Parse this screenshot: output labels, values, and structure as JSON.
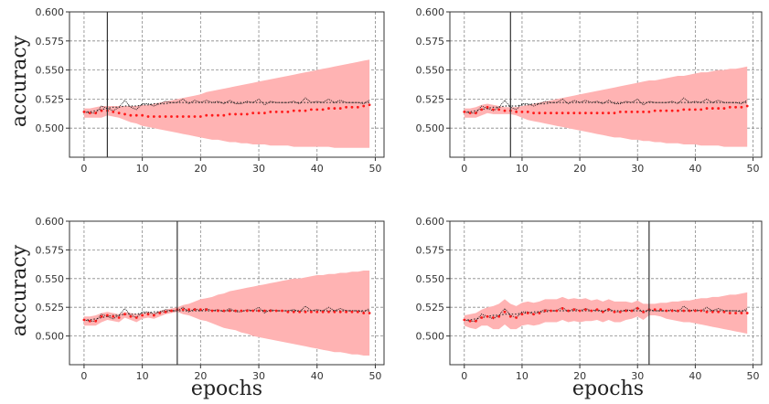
{
  "chart_data": [
    {
      "type": "line",
      "ylabel": "accuracy",
      "xlabel": "",
      "xlim": [
        -2.5,
        51.5
      ],
      "ylim": [
        0.475,
        0.6
      ],
      "yticks": [
        0.5,
        0.525,
        0.55,
        0.575,
        0.6
      ],
      "ytick_labels": [
        "0.500",
        "0.525",
        "0.550",
        "0.575",
        "0.600"
      ],
      "xticks": [
        0,
        10,
        20,
        30,
        40,
        50
      ],
      "xtick_labels": [
        "0",
        "10",
        "20",
        "30",
        "40",
        "50"
      ],
      "grid": true,
      "vline": 4,
      "actual": [
        0.514,
        0.513,
        0.513,
        0.519,
        0.517,
        0.515,
        0.518,
        0.524,
        0.518,
        0.516,
        0.521,
        0.521,
        0.519,
        0.521,
        0.523,
        0.522,
        0.522,
        0.525,
        0.521,
        0.524,
        0.522,
        0.524,
        0.522,
        0.523,
        0.521,
        0.524,
        0.521,
        0.521,
        0.523,
        0.522,
        0.525,
        0.52,
        0.523,
        0.522,
        0.522,
        0.522,
        0.523,
        0.521,
        0.526,
        0.522,
        0.523,
        0.522,
        0.525,
        0.522,
        0.524,
        0.522,
        0.522,
        0.522,
        0.521,
        0.524
      ],
      "smoothed": [
        0.514,
        0.514,
        0.515,
        0.516,
        0.517,
        0.518,
        0.518,
        0.519,
        0.519,
        0.519,
        0.52,
        0.52,
        0.521,
        0.521,
        0.521,
        0.522,
        0.522,
        0.522,
        0.522,
        0.522,
        0.522,
        0.522,
        0.522,
        0.522,
        0.522,
        0.522,
        0.522,
        0.522,
        0.522,
        0.522,
        0.522,
        0.522,
        0.522,
        0.522,
        0.522,
        0.522,
        0.522,
        0.522,
        0.522,
        0.522,
        0.522,
        0.522,
        0.522,
        0.522,
        0.522,
        0.522,
        0.522,
        0.522,
        0.522,
        0.522
      ],
      "forecast": [
        0.514,
        0.513,
        0.513,
        0.515,
        0.515,
        0.514,
        0.513,
        0.512,
        0.511,
        0.511,
        0.511,
        0.51,
        0.51,
        0.51,
        0.51,
        0.51,
        0.51,
        0.51,
        0.51,
        0.51,
        0.51,
        0.511,
        0.511,
        0.511,
        0.511,
        0.512,
        0.512,
        0.512,
        0.512,
        0.513,
        0.513,
        0.513,
        0.514,
        0.514,
        0.514,
        0.514,
        0.515,
        0.515,
        0.515,
        0.516,
        0.516,
        0.516,
        0.517,
        0.517,
        0.517,
        0.518,
        0.518,
        0.518,
        0.519,
        0.52
      ],
      "band_upper": [
        0.517,
        0.517,
        0.518,
        0.519,
        0.519,
        0.519,
        0.519,
        0.519,
        0.519,
        0.519,
        0.52,
        0.52,
        0.521,
        0.522,
        0.523,
        0.524,
        0.525,
        0.526,
        0.527,
        0.528,
        0.529,
        0.531,
        0.532,
        0.533,
        0.534,
        0.535,
        0.536,
        0.537,
        0.538,
        0.539,
        0.54,
        0.541,
        0.542,
        0.543,
        0.544,
        0.545,
        0.546,
        0.547,
        0.548,
        0.549,
        0.55,
        0.551,
        0.552,
        0.553,
        0.554,
        0.555,
        0.556,
        0.557,
        0.558,
        0.559
      ],
      "band_lower": [
        0.509,
        0.509,
        0.509,
        0.509,
        0.511,
        0.51,
        0.509,
        0.507,
        0.505,
        0.504,
        0.502,
        0.501,
        0.5,
        0.499,
        0.498,
        0.497,
        0.496,
        0.495,
        0.494,
        0.493,
        0.492,
        0.491,
        0.49,
        0.49,
        0.489,
        0.488,
        0.488,
        0.487,
        0.487,
        0.486,
        0.486,
        0.486,
        0.485,
        0.485,
        0.485,
        0.485,
        0.484,
        0.484,
        0.484,
        0.484,
        0.484,
        0.484,
        0.484,
        0.483,
        0.483,
        0.483,
        0.483,
        0.483,
        0.483,
        0.483
      ]
    },
    {
      "type": "line",
      "ylabel": "",
      "xlabel": "",
      "xlim": [
        -2.5,
        51.5
      ],
      "ylim": [
        0.475,
        0.6
      ],
      "yticks": [
        0.5,
        0.525,
        0.55,
        0.575,
        0.6
      ],
      "ytick_labels": [
        "0.500",
        "0.525",
        "0.550",
        "0.575",
        "0.600"
      ],
      "xticks": [
        0,
        10,
        20,
        30,
        40,
        50
      ],
      "xtick_labels": [
        "0",
        "10",
        "20",
        "30",
        "40",
        "50"
      ],
      "grid": true,
      "vline": 8,
      "actual": [
        0.514,
        0.513,
        0.513,
        0.519,
        0.517,
        0.515,
        0.518,
        0.524,
        0.518,
        0.516,
        0.521,
        0.521,
        0.519,
        0.521,
        0.523,
        0.522,
        0.522,
        0.525,
        0.521,
        0.524,
        0.522,
        0.524,
        0.522,
        0.523,
        0.521,
        0.524,
        0.521,
        0.521,
        0.523,
        0.522,
        0.525,
        0.52,
        0.523,
        0.522,
        0.522,
        0.522,
        0.523,
        0.521,
        0.526,
        0.522,
        0.523,
        0.522,
        0.525,
        0.522,
        0.524,
        0.522,
        0.522,
        0.522,
        0.521,
        0.524
      ],
      "smoothed": [
        0.514,
        0.514,
        0.515,
        0.516,
        0.517,
        0.518,
        0.518,
        0.519,
        0.519,
        0.519,
        0.52,
        0.52,
        0.521,
        0.521,
        0.521,
        0.522,
        0.522,
        0.522,
        0.522,
        0.522,
        0.522,
        0.522,
        0.522,
        0.522,
        0.522,
        0.522,
        0.522,
        0.522,
        0.522,
        0.522,
        0.522,
        0.522,
        0.522,
        0.522,
        0.522,
        0.522,
        0.522,
        0.522,
        0.522,
        0.522,
        0.522,
        0.522,
        0.522,
        0.522,
        0.522,
        0.522,
        0.522,
        0.522,
        0.522,
        0.522
      ],
      "forecast": [
        0.514,
        0.513,
        0.513,
        0.516,
        0.518,
        0.516,
        0.516,
        0.515,
        0.515,
        0.514,
        0.514,
        0.514,
        0.513,
        0.513,
        0.513,
        0.513,
        0.513,
        0.513,
        0.513,
        0.513,
        0.513,
        0.513,
        0.513,
        0.513,
        0.513,
        0.513,
        0.513,
        0.514,
        0.514,
        0.514,
        0.514,
        0.514,
        0.514,
        0.515,
        0.515,
        0.515,
        0.515,
        0.515,
        0.516,
        0.516,
        0.516,
        0.516,
        0.517,
        0.517,
        0.517,
        0.517,
        0.518,
        0.518,
        0.518,
        0.519
      ],
      "band_upper": [
        0.517,
        0.517,
        0.518,
        0.52,
        0.521,
        0.52,
        0.519,
        0.518,
        0.518,
        0.518,
        0.519,
        0.52,
        0.521,
        0.522,
        0.523,
        0.524,
        0.525,
        0.526,
        0.527,
        0.528,
        0.529,
        0.53,
        0.531,
        0.532,
        0.533,
        0.534,
        0.535,
        0.536,
        0.537,
        0.538,
        0.539,
        0.54,
        0.541,
        0.541,
        0.542,
        0.543,
        0.544,
        0.545,
        0.545,
        0.546,
        0.547,
        0.548,
        0.548,
        0.549,
        0.55,
        0.55,
        0.551,
        0.551,
        0.552,
        0.553
      ],
      "band_lower": [
        0.509,
        0.509,
        0.509,
        0.511,
        0.513,
        0.512,
        0.512,
        0.512,
        0.512,
        0.511,
        0.509,
        0.507,
        0.506,
        0.505,
        0.504,
        0.503,
        0.502,
        0.501,
        0.5,
        0.499,
        0.498,
        0.497,
        0.496,
        0.495,
        0.494,
        0.493,
        0.492,
        0.492,
        0.491,
        0.49,
        0.49,
        0.489,
        0.489,
        0.488,
        0.488,
        0.487,
        0.487,
        0.487,
        0.486,
        0.486,
        0.486,
        0.485,
        0.485,
        0.485,
        0.485,
        0.484,
        0.484,
        0.484,
        0.484,
        0.484
      ]
    },
    {
      "type": "line",
      "ylabel": "accuracy",
      "xlabel": "epochs",
      "xlim": [
        -2.5,
        51.5
      ],
      "ylim": [
        0.475,
        0.6
      ],
      "yticks": [
        0.5,
        0.525,
        0.55,
        0.575,
        0.6
      ],
      "ytick_labels": [
        "0.500",
        "0.525",
        "0.550",
        "0.575",
        "0.600"
      ],
      "xticks": [
        0,
        10,
        20,
        30,
        40,
        50
      ],
      "xtick_labels": [
        "0",
        "10",
        "20",
        "30",
        "40",
        "50"
      ],
      "grid": true,
      "vline": 16,
      "actual": [
        0.514,
        0.513,
        0.513,
        0.519,
        0.517,
        0.515,
        0.518,
        0.524,
        0.518,
        0.516,
        0.521,
        0.521,
        0.519,
        0.521,
        0.523,
        0.522,
        0.522,
        0.525,
        0.521,
        0.524,
        0.522,
        0.524,
        0.522,
        0.523,
        0.521,
        0.524,
        0.521,
        0.521,
        0.523,
        0.522,
        0.525,
        0.52,
        0.523,
        0.522,
        0.522,
        0.522,
        0.523,
        0.521,
        0.526,
        0.522,
        0.523,
        0.522,
        0.525,
        0.522,
        0.524,
        0.522,
        0.522,
        0.522,
        0.521,
        0.524
      ],
      "smoothed": [
        0.514,
        0.514,
        0.515,
        0.516,
        0.517,
        0.518,
        0.518,
        0.519,
        0.519,
        0.519,
        0.52,
        0.52,
        0.521,
        0.521,
        0.521,
        0.522,
        0.522,
        0.522,
        0.522,
        0.522,
        0.522,
        0.522,
        0.522,
        0.522,
        0.522,
        0.522,
        0.522,
        0.522,
        0.522,
        0.522,
        0.522,
        0.522,
        0.522,
        0.522,
        0.522,
        0.522,
        0.522,
        0.522,
        0.522,
        0.522,
        0.522,
        0.522,
        0.522,
        0.522,
        0.522,
        0.522,
        0.522,
        0.522,
        0.522,
        0.522
      ],
      "forecast": [
        0.514,
        0.513,
        0.513,
        0.517,
        0.518,
        0.517,
        0.516,
        0.519,
        0.517,
        0.516,
        0.518,
        0.519,
        0.518,
        0.52,
        0.521,
        0.522,
        0.523,
        0.523,
        0.523,
        0.523,
        0.523,
        0.523,
        0.522,
        0.522,
        0.522,
        0.522,
        0.522,
        0.522,
        0.522,
        0.522,
        0.522,
        0.522,
        0.522,
        0.522,
        0.522,
        0.521,
        0.521,
        0.521,
        0.521,
        0.521,
        0.521,
        0.521,
        0.521,
        0.521,
        0.521,
        0.521,
        0.521,
        0.521,
        0.52,
        0.52
      ],
      "band_upper": [
        0.517,
        0.517,
        0.518,
        0.52,
        0.521,
        0.52,
        0.519,
        0.521,
        0.52,
        0.519,
        0.52,
        0.521,
        0.52,
        0.522,
        0.523,
        0.524,
        0.525,
        0.527,
        0.528,
        0.53,
        0.532,
        0.533,
        0.534,
        0.536,
        0.537,
        0.539,
        0.54,
        0.541,
        0.542,
        0.543,
        0.544,
        0.545,
        0.546,
        0.547,
        0.548,
        0.549,
        0.55,
        0.55,
        0.551,
        0.552,
        0.553,
        0.553,
        0.554,
        0.554,
        0.555,
        0.555,
        0.556,
        0.556,
        0.557,
        0.557
      ],
      "band_lower": [
        0.509,
        0.509,
        0.509,
        0.512,
        0.514,
        0.513,
        0.512,
        0.516,
        0.514,
        0.512,
        0.515,
        0.516,
        0.515,
        0.517,
        0.519,
        0.52,
        0.521,
        0.519,
        0.518,
        0.516,
        0.514,
        0.513,
        0.511,
        0.509,
        0.507,
        0.506,
        0.505,
        0.503,
        0.502,
        0.5,
        0.499,
        0.498,
        0.497,
        0.496,
        0.495,
        0.494,
        0.493,
        0.492,
        0.491,
        0.49,
        0.489,
        0.488,
        0.487,
        0.486,
        0.486,
        0.485,
        0.484,
        0.484,
        0.483,
        0.483
      ]
    },
    {
      "type": "line",
      "ylabel": "",
      "xlabel": "epochs",
      "xlim": [
        -2.5,
        51.5
      ],
      "ylim": [
        0.475,
        0.6
      ],
      "yticks": [
        0.5,
        0.525,
        0.55,
        0.575,
        0.6
      ],
      "ytick_labels": [
        "0.500",
        "0.525",
        "0.550",
        "0.575",
        "0.600"
      ],
      "xticks": [
        0,
        10,
        20,
        30,
        40,
        50
      ],
      "xtick_labels": [
        "0",
        "10",
        "20",
        "30",
        "40",
        "50"
      ],
      "grid": true,
      "vline": 32,
      "actual": [
        0.514,
        0.513,
        0.513,
        0.519,
        0.517,
        0.515,
        0.518,
        0.524,
        0.518,
        0.516,
        0.521,
        0.521,
        0.519,
        0.521,
        0.523,
        0.522,
        0.522,
        0.525,
        0.521,
        0.524,
        0.522,
        0.524,
        0.522,
        0.523,
        0.521,
        0.524,
        0.521,
        0.521,
        0.523,
        0.522,
        0.525,
        0.52,
        0.523,
        0.522,
        0.522,
        0.522,
        0.523,
        0.521,
        0.526,
        0.522,
        0.523,
        0.522,
        0.525,
        0.522,
        0.524,
        0.522,
        0.522,
        0.522,
        0.521,
        0.524
      ],
      "smoothed": [
        0.514,
        0.514,
        0.515,
        0.516,
        0.517,
        0.518,
        0.518,
        0.519,
        0.519,
        0.519,
        0.52,
        0.52,
        0.521,
        0.521,
        0.521,
        0.522,
        0.522,
        0.522,
        0.522,
        0.522,
        0.522,
        0.522,
        0.522,
        0.522,
        0.522,
        0.522,
        0.522,
        0.522,
        0.522,
        0.522,
        0.522,
        0.522,
        0.522,
        0.522,
        0.522,
        0.522,
        0.522,
        0.522,
        0.522,
        0.522,
        0.522,
        0.522,
        0.522,
        0.522,
        0.522,
        0.522,
        0.522,
        0.522,
        0.522,
        0.522
      ],
      "forecast": [
        0.514,
        0.513,
        0.513,
        0.516,
        0.517,
        0.516,
        0.517,
        0.521,
        0.517,
        0.516,
        0.519,
        0.52,
        0.519,
        0.52,
        0.522,
        0.522,
        0.522,
        0.524,
        0.522,
        0.523,
        0.522,
        0.523,
        0.522,
        0.523,
        0.521,
        0.523,
        0.521,
        0.521,
        0.522,
        0.522,
        0.524,
        0.521,
        0.523,
        0.523,
        0.523,
        0.522,
        0.522,
        0.522,
        0.522,
        0.522,
        0.522,
        0.522,
        0.521,
        0.521,
        0.521,
        0.521,
        0.52,
        0.52,
        0.52,
        0.52
      ],
      "band_upper": [
        0.518,
        0.519,
        0.52,
        0.523,
        0.525,
        0.526,
        0.528,
        0.532,
        0.528,
        0.526,
        0.529,
        0.53,
        0.529,
        0.53,
        0.532,
        0.532,
        0.532,
        0.534,
        0.532,
        0.533,
        0.532,
        0.533,
        0.531,
        0.532,
        0.53,
        0.532,
        0.53,
        0.53,
        0.53,
        0.529,
        0.531,
        0.528,
        0.528,
        0.528,
        0.529,
        0.529,
        0.53,
        0.53,
        0.531,
        0.531,
        0.532,
        0.533,
        0.533,
        0.534,
        0.534,
        0.535,
        0.536,
        0.536,
        0.537,
        0.538
      ],
      "band_lower": [
        0.509,
        0.507,
        0.506,
        0.509,
        0.509,
        0.506,
        0.506,
        0.51,
        0.506,
        0.506,
        0.509,
        0.51,
        0.509,
        0.51,
        0.512,
        0.512,
        0.512,
        0.514,
        0.512,
        0.513,
        0.512,
        0.513,
        0.513,
        0.514,
        0.512,
        0.514,
        0.512,
        0.512,
        0.514,
        0.515,
        0.517,
        0.514,
        0.518,
        0.518,
        0.517,
        0.515,
        0.514,
        0.513,
        0.512,
        0.512,
        0.511,
        0.51,
        0.509,
        0.508,
        0.507,
        0.506,
        0.505,
        0.504,
        0.503,
        0.502
      ]
    }
  ],
  "colors": {
    "band": "#ffb3b3",
    "forecast": "#ff1a1a",
    "actual": "#111111",
    "smoothed": "#333333",
    "vline": "#333333",
    "grid": "#888888"
  }
}
